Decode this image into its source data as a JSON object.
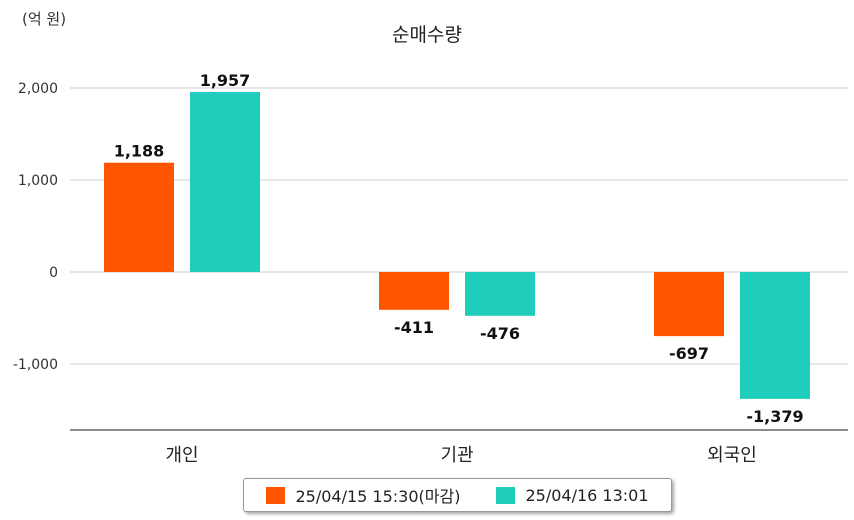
{
  "chart_data": {
    "type": "bar",
    "title": "순매수량",
    "unit_label": "(억 원)",
    "categories": [
      "개인",
      "기관",
      "외국인"
    ],
    "series": [
      {
        "name": "25/04/15 15:30(마감)",
        "color": "#ff5500",
        "values": [
          1188,
          -411,
          -697
        ],
        "labels": [
          "1,188",
          "-411",
          "-697"
        ]
      },
      {
        "name": "25/04/16 13:01",
        "color": "#1ecdbc",
        "values": [
          1957,
          -476,
          -1379
        ],
        "labels": [
          "1,957",
          "-476",
          "-1,379"
        ]
      }
    ],
    "yticks": [
      {
        "value": 2000,
        "label": "2,000"
      },
      {
        "value": 1000,
        "label": "1,000"
      },
      {
        "value": 0,
        "label": "0"
      },
      {
        "value": -1000,
        "label": "-1,000"
      }
    ],
    "ylim": [
      -1700,
      2200
    ],
    "grid": true,
    "legend_position": "bottom"
  }
}
